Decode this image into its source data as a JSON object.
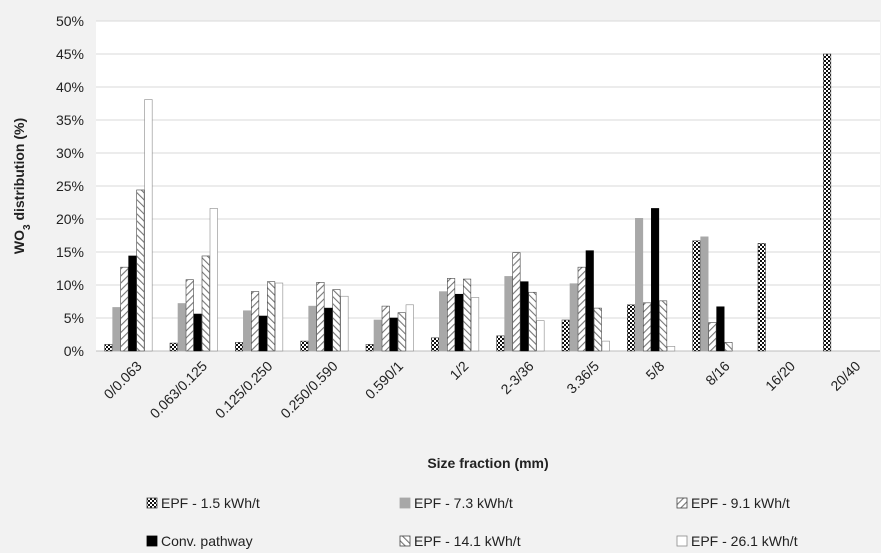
{
  "chart_data": {
    "type": "bar",
    "title": "",
    "xlabel": "Size fraction (mm)",
    "ylabel_main": "WO",
    "ylabel_sub": "3",
    "ylabel_rest": " distribution (%)",
    "ylim": [
      0,
      50
    ],
    "yticks": [
      0,
      5,
      10,
      15,
      20,
      25,
      30,
      35,
      40,
      45,
      50
    ],
    "ytick_labels": [
      "0%",
      "5%",
      "10%",
      "15%",
      "20%",
      "25%",
      "30%",
      "35%",
      "40%",
      "45%",
      "50%"
    ],
    "grid": true,
    "legend_position": "bottom",
    "categories": [
      "0/0.063",
      "0.063/0.125",
      "0.125/0.250",
      "0.250/0.590",
      "0.590/1",
      "1/2",
      "2-3/36",
      "3.36/5",
      "5/8",
      "8/16",
      "16/20",
      "20/40"
    ],
    "series": [
      {
        "name": "EPF - 1.5 kWh/t",
        "pattern": "checker",
        "values": [
          1.0,
          1.2,
          1.3,
          1.5,
          1.0,
          2.0,
          2.3,
          4.7,
          7.0,
          16.7,
          16.3,
          45.0
        ]
      },
      {
        "name": "EPF - 7.3 kWh/t",
        "pattern": "solid-gray",
        "values": [
          6.6,
          7.2,
          6.1,
          6.8,
          4.7,
          9.0,
          11.3,
          10.2,
          20.1,
          17.3,
          0,
          0
        ]
      },
      {
        "name": "EPF - 9.1 kWh/t",
        "pattern": "hatch-back",
        "values": [
          12.7,
          10.8,
          9.0,
          10.4,
          6.8,
          11.0,
          14.9,
          12.7,
          7.3,
          4.3,
          0,
          0
        ]
      },
      {
        "name": "Conv. pathway",
        "pattern": "solid-black",
        "values": [
          14.4,
          5.6,
          5.3,
          6.5,
          5.0,
          8.6,
          10.5,
          15.2,
          21.6,
          6.7,
          0,
          0
        ]
      },
      {
        "name": "EPF - 14.1 kWh/t",
        "pattern": "hatch-fwd",
        "values": [
          24.4,
          14.4,
          10.5,
          9.3,
          5.8,
          10.9,
          8.9,
          6.5,
          7.6,
          1.3,
          0,
          0
        ]
      },
      {
        "name": "EPF - 26.1 kWh/t",
        "pattern": "white",
        "values": [
          38.1,
          21.6,
          10.3,
          8.3,
          7.0,
          8.1,
          4.6,
          1.5,
          0.7,
          0,
          0,
          0
        ]
      }
    ]
  }
}
